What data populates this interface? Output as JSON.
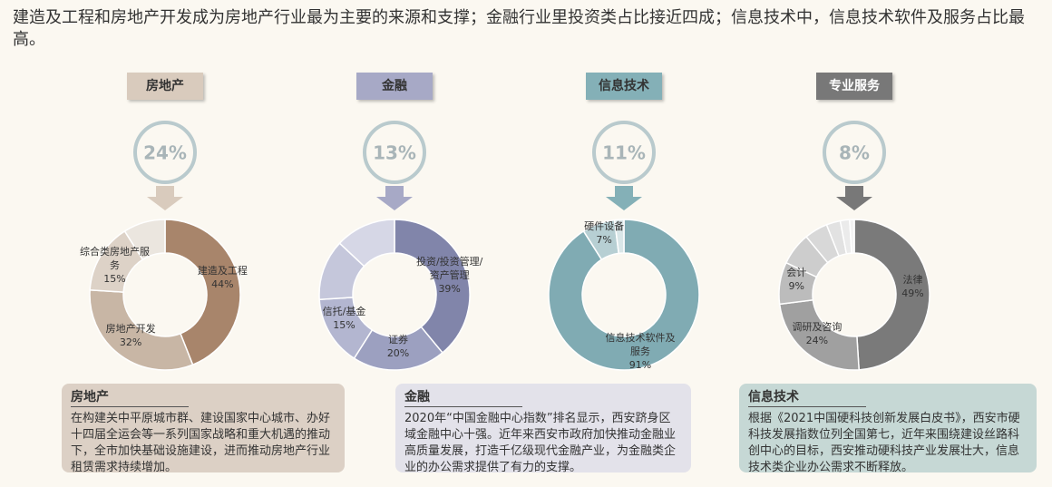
{
  "headline": "建造及工程和房地产开发成为房地产行业最为主要的来源和支撑；金融行业里投资类占比接近四成；信息技术中，信息技术软件及服务占比最高。",
  "chart_data": [
    {
      "type": "donut",
      "title": "房地产",
      "color": "#d9cbbd",
      "share": {
        "value": 24,
        "label": "24%"
      },
      "categories": [
        "建造及工程",
        "房地产开发",
        "综合类房地产服务",
        null
      ],
      "values": [
        44,
        32,
        15,
        9
      ],
      "value_labels": [
        "44%",
        "32%",
        "15%",
        null
      ],
      "colors": [
        "#a8856b",
        "#c8b6a5",
        "#ddd2c7",
        "#ebe6df"
      ]
    },
    {
      "type": "donut",
      "title": "金融",
      "color": "#a7a9c6",
      "share": {
        "value": 13,
        "label": "13%"
      },
      "categories": [
        "投资/投资管理/资产管理",
        "证券",
        "信托/基金",
        null,
        null
      ],
      "values": [
        39,
        20,
        15,
        13,
        13
      ],
      "value_labels": [
        "39%",
        "20%",
        "15%",
        null,
        null
      ],
      "colors": [
        "#8185aa",
        "#9ca0c0",
        "#b3b6d0",
        "#c5c7db",
        "#d6d7e6"
      ]
    },
    {
      "type": "donut",
      "title": "信息技术",
      "color": "#84b0b7",
      "share": {
        "value": 11,
        "label": "11%"
      },
      "categories": [
        "信息技术软件及服务",
        "硬件设备",
        null
      ],
      "values": [
        91,
        7,
        2
      ],
      "value_labels": [
        "91%",
        "7%",
        null
      ],
      "colors": [
        "#80abb3",
        "#b7cfd3",
        "#d9e6e8"
      ]
    },
    {
      "type": "donut",
      "title": "专业服务",
      "color": "#787878",
      "share": {
        "value": 8,
        "label": "8%"
      },
      "categories": [
        "法律",
        "调研及咨询",
        "会计",
        null,
        null,
        null,
        null,
        null
      ],
      "values": [
        49,
        24,
        9,
        7,
        5,
        3,
        2,
        1
      ],
      "value_labels": [
        "49%",
        "24%",
        "9%",
        null,
        null,
        null,
        null,
        null
      ],
      "colors": [
        "#7a7a7a",
        "#a0a0a0",
        "#bcbcbc",
        "#cdcdcd",
        "#d8d8d8",
        "#e2e2e2",
        "#ebebeb",
        "#f3f3f3"
      ]
    }
  ],
  "notes": [
    {
      "title": "房地产",
      "text": "在构建关中平原城市群、建设国家中心城市、办好十四届全运会等一系列国家战略和重大机遇的推动下，全市加快基础设施建设，进而推动房地产行业租赁需求持续增加。"
    },
    {
      "title": "金融",
      "text": "2020年“中国金融中心指数”排名显示，西安跻身区域金融中心十强。近年来西安市政府加快推动金融业高质量发展，打造千亿级现代金融产业，为金融类企业的办公需求提供了有力的支撑。"
    },
    {
      "title": "信息技术",
      "text": "根据《2021中国硬科技创新发展白皮书》，西安市硬科技发展指数位列全国第七，近年来围绕建设丝路科创中心的目标，西安推动硬科技产业发展壮大，信息技术类企业办公需求不断释放。"
    }
  ]
}
